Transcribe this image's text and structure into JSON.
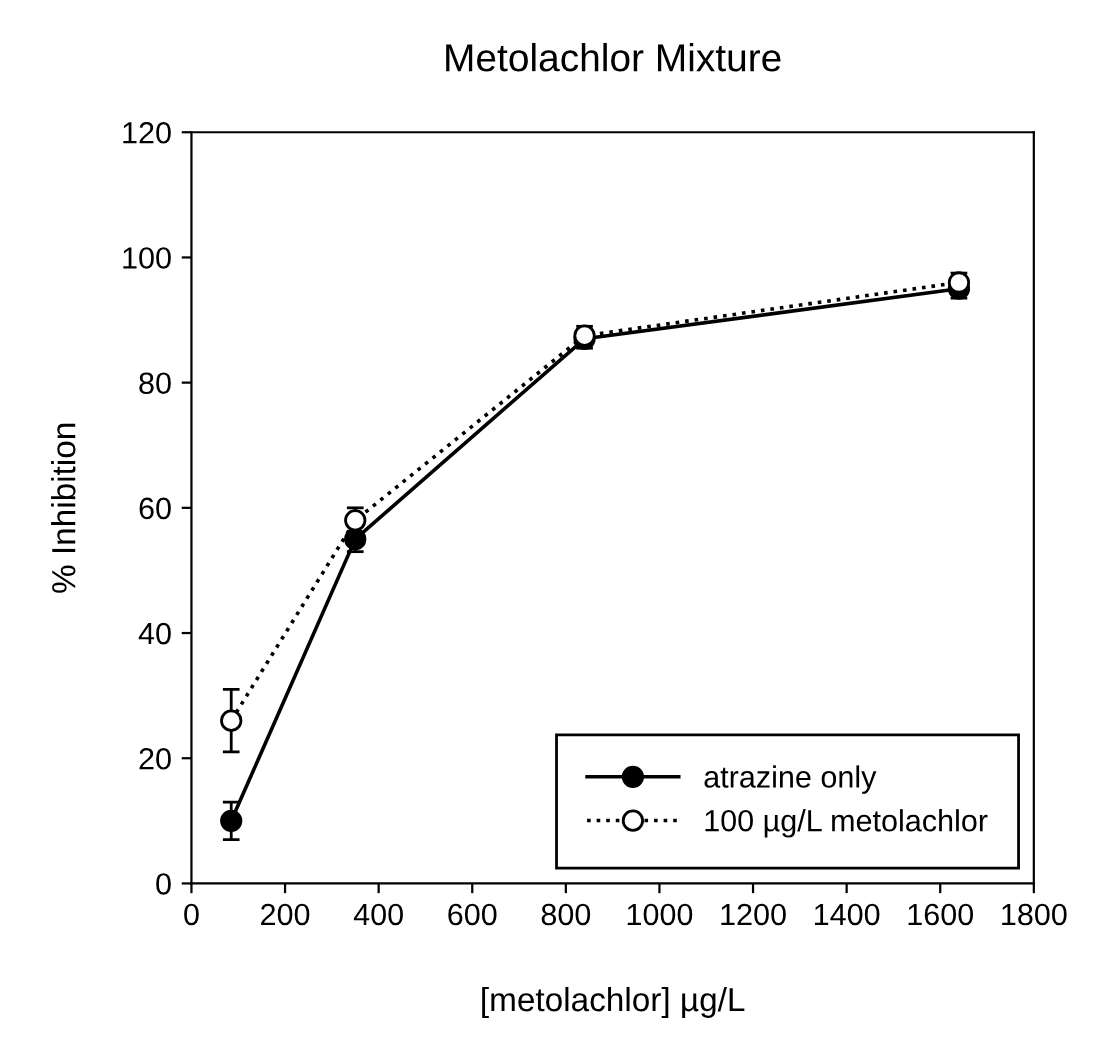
{
  "chart_data": {
    "type": "line",
    "title": "Metolachlor Mixture",
    "xlabel": "[metolachlor] µg/L",
    "ylabel": "% Inhibition",
    "series": [
      {
        "name": "atrazine only",
        "color": "#000000",
        "x": [
          85,
          350,
          840,
          1640
        ],
        "values": [
          10,
          55,
          87,
          95
        ],
        "errors": [
          3,
          2,
          1.5,
          1.5
        ],
        "line_style": "solid"
      },
      {
        "name": "100 µg/L metolachlor",
        "color": "#000000",
        "x": [
          85,
          350,
          840,
          1640
        ],
        "values": [
          26,
          58,
          87.5,
          96
        ],
        "errors": [
          5,
          2,
          1.5,
          1.5
        ],
        "line_style": "dotted"
      }
    ],
    "xlim": [
      0,
      1800
    ],
    "xticks": [
      0,
      200,
      400,
      600,
      800,
      1000,
      1200,
      1400,
      1600,
      1800
    ],
    "ylim": [
      0,
      120
    ],
    "yticks": [
      0,
      20,
      40,
      60,
      80,
      100,
      120
    ],
    "grid": false,
    "legend": "bottom right",
    "marker": "circle"
  }
}
